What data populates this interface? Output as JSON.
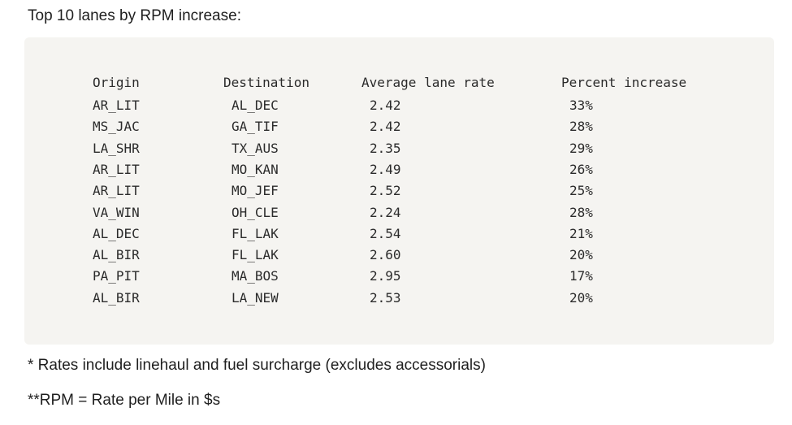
{
  "heading": "Top 10 lanes by RPM increase:",
  "table": {
    "headers": [
      "Origin",
      "Destination",
      "Average lane rate",
      "Percent increase"
    ],
    "rows": [
      [
        "AR_LIT",
        "AL_DEC",
        "2.42",
        "33%"
      ],
      [
        "MS_JAC",
        "GA_TIF",
        "2.42",
        "28%"
      ],
      [
        "LA_SHR",
        "TX_AUS",
        "2.35",
        "29%"
      ],
      [
        "AR_LIT",
        "MO_KAN",
        "2.49",
        "26%"
      ],
      [
        "AR_LIT",
        "MO_JEF",
        "2.52",
        "25%"
      ],
      [
        "VA_WIN",
        "OH_CLE",
        "2.24",
        "28%"
      ],
      [
        "AL_DEC",
        "FL_LAK",
        "2.54",
        "21%"
      ],
      [
        "AL_BIR",
        "FL_LAK",
        "2.60",
        "20%"
      ],
      [
        "PA_PIT",
        "MA_BOS",
        "2.95",
        "17%"
      ],
      [
        "AL_BIR",
        "LA_NEW",
        "2.53",
        "20%"
      ]
    ]
  },
  "notes": {
    "rates": "* Rates include linehaul and fuel surcharge (excludes accessorials)",
    "rpm": "**RPM = Rate per Mile in $s"
  }
}
